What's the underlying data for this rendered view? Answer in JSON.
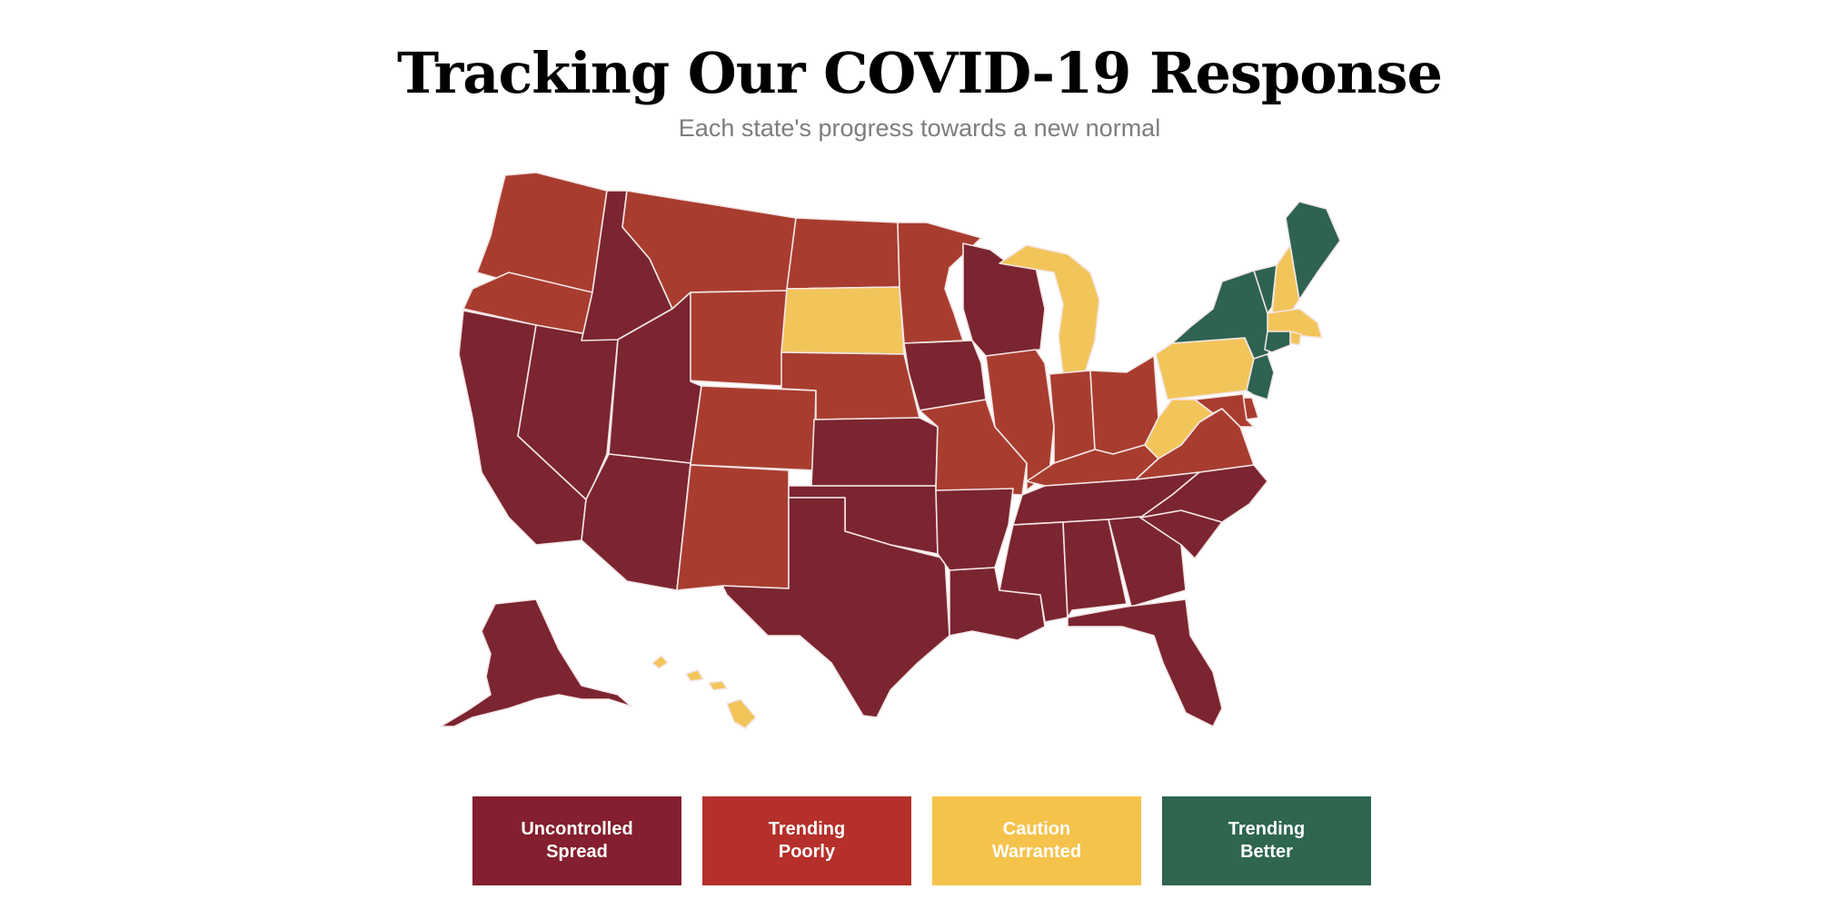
{
  "header": {
    "title": "Tracking Our COVID-19 Response",
    "subtitle": "Each state's progress towards a new normal"
  },
  "colors": {
    "uncontrolled": "#7b2530",
    "poorly": "#a83d2f",
    "caution": "#f2c55b",
    "better": "#2d6350",
    "legend_uncontrolled": "#831f2e",
    "legend_poorly": "#b5302a",
    "legend_caution": "#f5c24b",
    "legend_better": "#2e6650"
  },
  "legend": {
    "items": [
      {
        "label": "Uncontrolled\nSpread",
        "status": "uncontrolled"
      },
      {
        "label": "Trending\nPoorly",
        "status": "poorly"
      },
      {
        "label": "Caution\nWarranted",
        "status": "caution"
      },
      {
        "label": "Trending\nBetter",
        "status": "better"
      }
    ]
  },
  "states": {
    "WA": "poorly",
    "OR": "poorly",
    "CA": "uncontrolled",
    "NV": "uncontrolled",
    "ID": "uncontrolled",
    "MT": "poorly",
    "WY": "poorly",
    "UT": "uncontrolled",
    "AZ": "uncontrolled",
    "CO": "poorly",
    "NM": "poorly",
    "ND": "poorly",
    "SD": "caution",
    "NE": "poorly",
    "KS": "uncontrolled",
    "OK": "uncontrolled",
    "TX": "uncontrolled",
    "MN": "poorly",
    "IA": "uncontrolled",
    "MO": "poorly",
    "AR": "uncontrolled",
    "LA": "uncontrolled",
    "WI": "uncontrolled",
    "IL": "poorly",
    "MI": "caution",
    "IN": "poorly",
    "OH": "poorly",
    "KY": "poorly",
    "TN": "uncontrolled",
    "MS": "uncontrolled",
    "AL": "uncontrolled",
    "GA": "uncontrolled",
    "FL": "uncontrolled",
    "SC": "uncontrolled",
    "NC": "uncontrolled",
    "VA": "poorly",
    "WV": "caution",
    "PA": "caution",
    "NY": "better",
    "VT": "better",
    "NH": "caution",
    "ME": "better",
    "MA": "caution",
    "RI": "caution",
    "CT": "better",
    "NJ": "better",
    "DE": "poorly",
    "MD": "poorly",
    "AK": "uncontrolled",
    "HI": "caution"
  }
}
